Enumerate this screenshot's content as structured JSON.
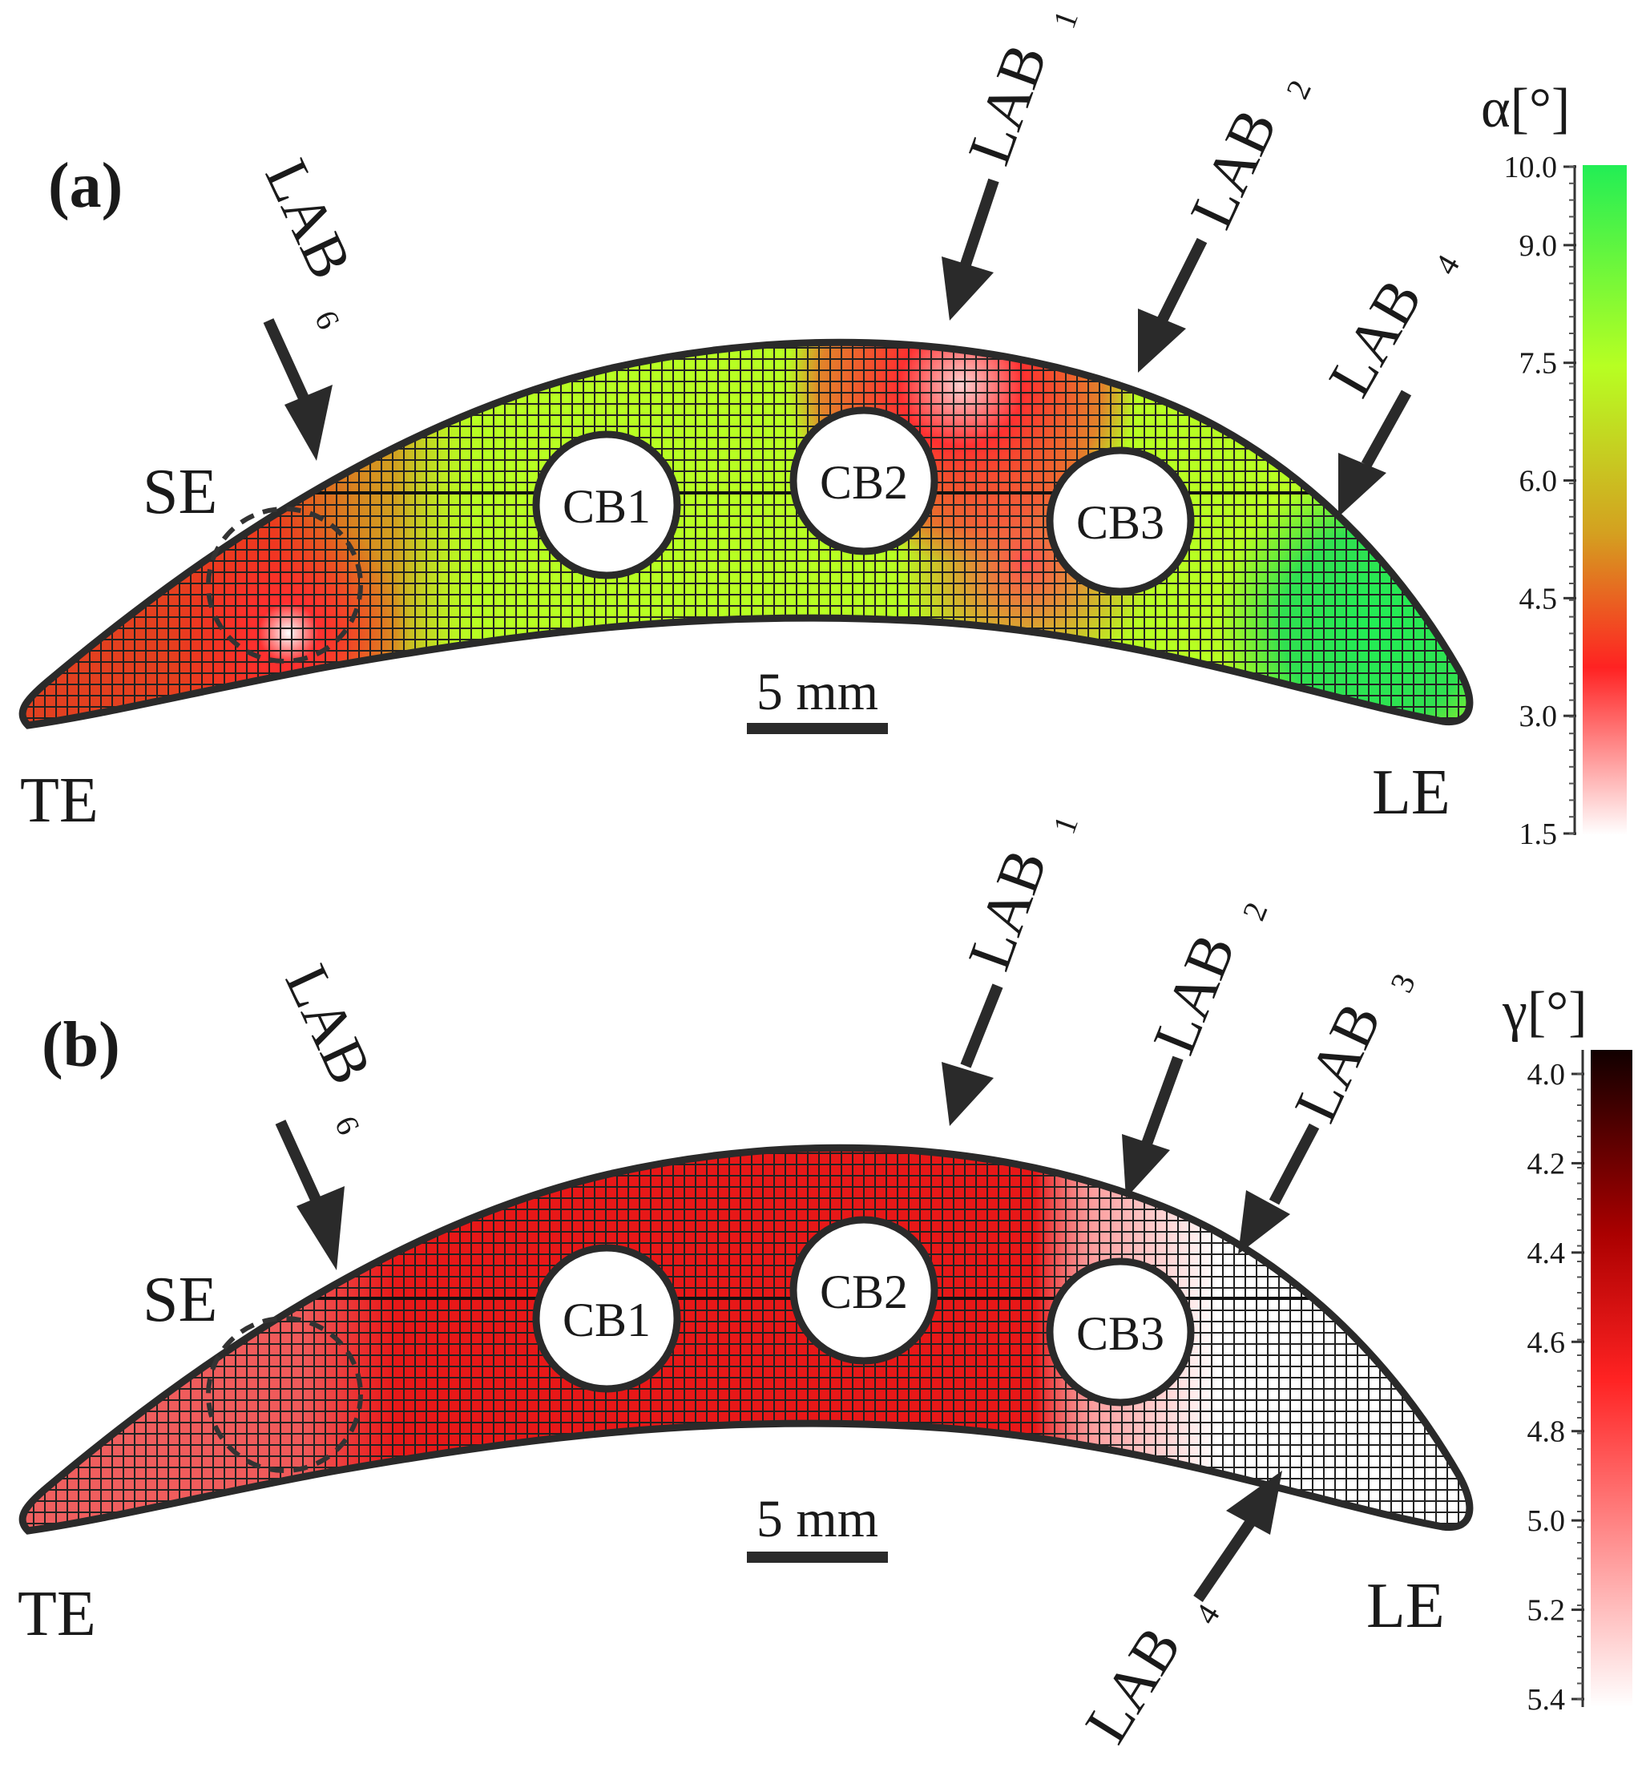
{
  "panels": [
    {
      "id": "a",
      "label": "(a)",
      "colorbar": {
        "title": "α[°]",
        "ticks": [
          "10.0",
          "9.0",
          "7.5",
          "6.0",
          "4.5",
          "3.0",
          "1.5"
        ],
        "tick_values": [
          10.0,
          9.0,
          7.5,
          6.0,
          4.5,
          3.0,
          1.5
        ],
        "colors": [
          "#22ee55",
          "#b7ff22",
          "#ff2222",
          "#ffffff"
        ]
      },
      "edge_labels": {
        "se": "SE",
        "te": "TE",
        "le": "LE"
      },
      "cooling_bores": [
        "CB1",
        "CB2",
        "CB3"
      ],
      "scale_bar": "5 mm",
      "arrows": [
        {
          "base": "LAB",
          "sub": "6"
        },
        {
          "base": "LAB",
          "sub": "1"
        },
        {
          "base": "LAB",
          "sub": "2"
        },
        {
          "base": "LAB",
          "sub": "4"
        }
      ]
    },
    {
      "id": "b",
      "label": "(b)",
      "colorbar": {
        "title": "γ[°]",
        "ticks": [
          "4.0",
          "4.2",
          "4.4",
          "4.6",
          "4.8",
          "5.0",
          "5.2",
          "5.4"
        ],
        "tick_values": [
          4.0,
          4.2,
          4.4,
          4.6,
          4.8,
          5.0,
          5.2,
          5.4
        ],
        "colors": [
          "#110000",
          "#aa0000",
          "#ff2222",
          "#ffffff"
        ]
      },
      "edge_labels": {
        "se": "SE",
        "te": "TE",
        "le": "LE"
      },
      "cooling_bores": [
        "CB1",
        "CB2",
        "CB3"
      ],
      "scale_bar": "5 mm",
      "arrows": [
        {
          "base": "LAB",
          "sub": "6"
        },
        {
          "base": "LAB",
          "sub": "1"
        },
        {
          "base": "LAB",
          "sub": "2"
        },
        {
          "base": "LAB",
          "sub": "3"
        },
        {
          "base": "LAB",
          "sub": "4"
        }
      ]
    }
  ]
}
